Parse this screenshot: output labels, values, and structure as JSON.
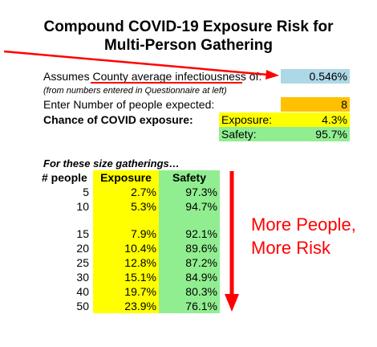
{
  "title_line1": "Compound COVID-19 Exposure Risk for",
  "title_line2": "Multi-Person Gathering",
  "infectiousness": {
    "prefix": "Assumes ",
    "link_text": "County average infectiousness",
    "suffix": " of:",
    "value": "0.546%",
    "note": "(from numbers entered in Questionnaire at left)"
  },
  "people_expected": {
    "label": "Enter Number of people expected:",
    "value": "8"
  },
  "chance": {
    "label": "Chance of COVID exposure:",
    "exposure_label": "Exposure:",
    "exposure_value": "4.3%",
    "safety_label": "Safety:",
    "safety_value": "95.7%"
  },
  "table": {
    "caption": "For these size gatherings…",
    "headers": [
      "# people",
      "Exposure",
      "Safety"
    ],
    "rows": [
      {
        "people": "5",
        "exposure": "2.7%",
        "safety": "97.3%"
      },
      {
        "people": "10",
        "exposure": "5.3%",
        "safety": "94.7%"
      },
      {
        "people": "15",
        "exposure": "7.9%",
        "safety": "92.1%"
      },
      {
        "people": "20",
        "exposure": "10.4%",
        "safety": "89.6%"
      },
      {
        "people": "25",
        "exposure": "12.8%",
        "safety": "87.2%"
      },
      {
        "people": "30",
        "exposure": "15.1%",
        "safety": "84.9%"
      },
      {
        "people": "40",
        "exposure": "19.7%",
        "safety": "80.3%"
      },
      {
        "people": "50",
        "exposure": "23.9%",
        "safety": "76.1%"
      }
    ]
  },
  "annotation": {
    "line1": "More People,",
    "line2": "More Risk"
  },
  "colors": {
    "input_blue": "#add8e6",
    "input_orange": "#ffc000",
    "exposure_yellow": "#ffff00",
    "safety_green": "#90ee90",
    "arrow_red": "#ff0000"
  }
}
